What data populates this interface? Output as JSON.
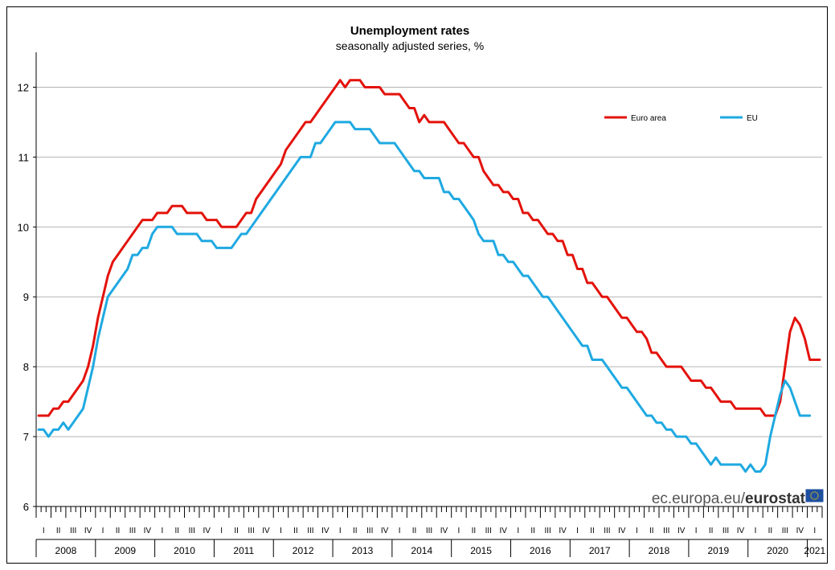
{
  "chart_data": {
    "type": "line",
    "title": "Unemployment rates",
    "subtitle": "seasonally adjusted series, %",
    "ylim": [
      6,
      12.5
    ],
    "yticks": [
      "6",
      "7",
      "8",
      "9",
      "10",
      "11",
      "12"
    ],
    "grid": "horizontal",
    "legend_position": "top-right",
    "quarter_labels": [
      "I",
      "II",
      "III",
      "IV"
    ],
    "years": [
      "2008",
      "2009",
      "2010",
      "2011",
      "2012",
      "2013",
      "2014",
      "2015",
      "2016",
      "2017",
      "2018",
      "2019",
      "2020",
      "2021"
    ],
    "x_start": "2008-01",
    "x_end": "2021-01",
    "series": [
      {
        "name": "Euro area",
        "color": "#e3120b",
        "values": [
          7.3,
          7.3,
          7.3,
          7.4,
          7.4,
          7.5,
          7.5,
          7.6,
          7.7,
          7.8,
          8.0,
          8.3,
          8.7,
          9.0,
          9.3,
          9.5,
          9.6,
          9.7,
          9.8,
          9.9,
          10.0,
          10.1,
          10.1,
          10.1,
          10.2,
          10.2,
          10.2,
          10.3,
          10.3,
          10.3,
          10.2,
          10.2,
          10.2,
          10.2,
          10.1,
          10.1,
          10.1,
          10.0,
          10.0,
          10.0,
          10.0,
          10.1,
          10.2,
          10.2,
          10.4,
          10.5,
          10.6,
          10.7,
          10.8,
          10.9,
          11.1,
          11.2,
          11.3,
          11.4,
          11.5,
          11.5,
          11.6,
          11.7,
          11.8,
          11.9,
          12.0,
          12.1,
          12.0,
          12.1,
          12.1,
          12.1,
          12.0,
          12.0,
          12.0,
          12.0,
          11.9,
          11.9,
          11.9,
          11.9,
          11.8,
          11.7,
          11.7,
          11.5,
          11.6,
          11.5,
          11.5,
          11.5,
          11.5,
          11.4,
          11.3,
          11.2,
          11.2,
          11.1,
          11.0,
          11.0,
          10.8,
          10.7,
          10.6,
          10.6,
          10.5,
          10.5,
          10.4,
          10.4,
          10.2,
          10.2,
          10.1,
          10.1,
          10.0,
          9.9,
          9.9,
          9.8,
          9.8,
          9.6,
          9.6,
          9.4,
          9.4,
          9.2,
          9.2,
          9.1,
          9.0,
          9.0,
          8.9,
          8.8,
          8.7,
          8.7,
          8.6,
          8.5,
          8.5,
          8.4,
          8.2,
          8.2,
          8.1,
          8.0,
          8.0,
          8.0,
          8.0,
          7.9,
          7.8,
          7.8,
          7.8,
          7.7,
          7.7,
          7.6,
          7.5,
          7.5,
          7.5,
          7.4,
          7.4,
          7.4,
          7.4,
          7.4,
          7.4,
          7.3,
          7.3,
          7.3,
          7.5,
          8.0,
          8.5,
          8.7,
          8.6,
          8.4,
          8.1,
          8.1,
          8.1
        ]
      },
      {
        "name": "EU",
        "color": "#1fa9e1",
        "values": [
          7.1,
          7.1,
          7.0,
          7.1,
          7.1,
          7.2,
          7.1,
          7.2,
          7.3,
          7.4,
          7.7,
          8.0,
          8.4,
          8.7,
          9.0,
          9.1,
          9.2,
          9.3,
          9.4,
          9.6,
          9.6,
          9.7,
          9.7,
          9.9,
          10.0,
          10.0,
          10.0,
          10.0,
          9.9,
          9.9,
          9.9,
          9.9,
          9.9,
          9.8,
          9.8,
          9.8,
          9.7,
          9.7,
          9.7,
          9.7,
          9.8,
          9.9,
          9.9,
          10.0,
          10.1,
          10.2,
          10.3,
          10.4,
          10.5,
          10.6,
          10.7,
          10.8,
          10.9,
          11.0,
          11.0,
          11.0,
          11.2,
          11.2,
          11.3,
          11.4,
          11.5,
          11.5,
          11.5,
          11.5,
          11.4,
          11.4,
          11.4,
          11.4,
          11.3,
          11.2,
          11.2,
          11.2,
          11.2,
          11.1,
          11.0,
          10.9,
          10.8,
          10.8,
          10.7,
          10.7,
          10.7,
          10.7,
          10.5,
          10.5,
          10.4,
          10.4,
          10.3,
          10.2,
          10.1,
          9.9,
          9.8,
          9.8,
          9.8,
          9.6,
          9.6,
          9.5,
          9.5,
          9.4,
          9.3,
          9.3,
          9.2,
          9.1,
          9.0,
          9.0,
          8.9,
          8.8,
          8.7,
          8.6,
          8.5,
          8.4,
          8.3,
          8.3,
          8.1,
          8.1,
          8.1,
          8.0,
          7.9,
          7.8,
          7.7,
          7.7,
          7.6,
          7.5,
          7.4,
          7.3,
          7.3,
          7.2,
          7.2,
          7.1,
          7.1,
          7.0,
          7.0,
          7.0,
          6.9,
          6.9,
          6.8,
          6.7,
          6.6,
          6.7,
          6.6,
          6.6,
          6.6,
          6.6,
          6.6,
          6.5,
          6.6,
          6.5,
          6.5,
          6.6,
          7.0,
          7.3,
          7.6,
          7.8,
          7.7,
          7.5,
          7.3,
          7.3,
          7.3
        ]
      }
    ]
  },
  "branding": {
    "url": "ec.europa.eu/",
    "name": "eurostat"
  }
}
